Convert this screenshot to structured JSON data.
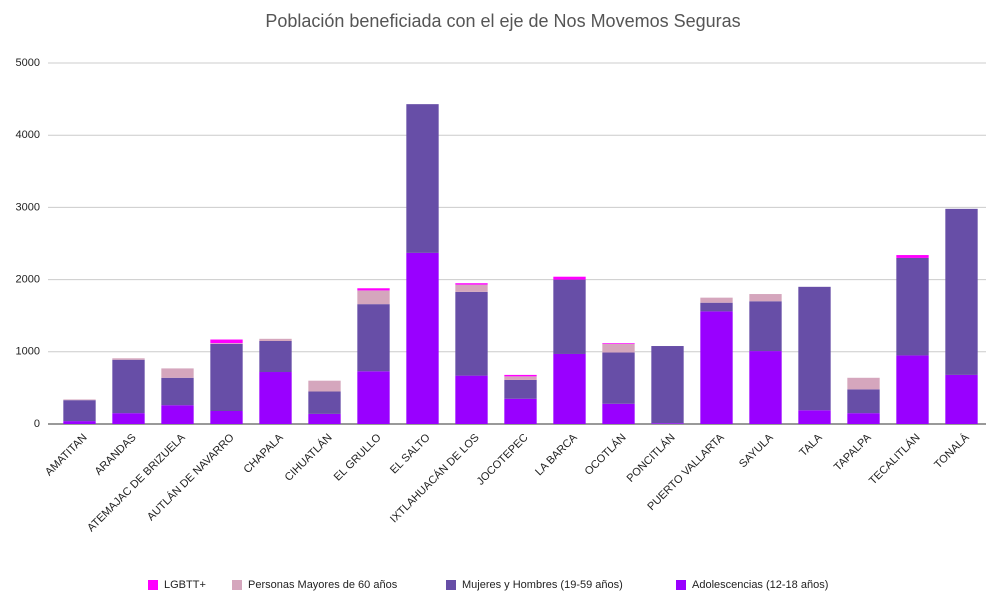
{
  "chart_data": {
    "type": "stacked_bar",
    "title": "Población beneficiada con el eje de Nos Movemos Seguras",
    "categories": [
      "AMATITAN",
      "ARANDAS",
      "ATEMAJAC DE BRIZUELA",
      "AUTLÁN DE NAVARRO",
      "CHAPALA",
      "CIHUATLÁN",
      "EL GRULLO",
      "EL SALTO",
      "IXTLAHUACÁN DE LOS",
      "JOCOTEPEC",
      "LA BARCA",
      "OCOTLÁN",
      "PONCITLÁN",
      "PUERTO VALLARTA",
      "SAYULA",
      "TALA",
      "TAPALPA",
      "TECALITLÁN",
      "TONALÁ"
    ],
    "series": [
      {
        "name": "LGBTT+",
        "color": "#ff00ff",
        "values": [
          0,
          0,
          0,
          50,
          0,
          0,
          30,
          0,
          20,
          20,
          40,
          10,
          0,
          0,
          0,
          0,
          0,
          40,
          0
        ]
      },
      {
        "name": "Personas Mayores de 60 años",
        "color": "#d5a6bd",
        "values": [
          10,
          20,
          130,
          10,
          30,
          150,
          190,
          0,
          100,
          50,
          0,
          120,
          0,
          70,
          100,
          0,
          160,
          0,
          0
        ]
      },
      {
        "name": "Mujeres y Hombres (19-59 años)",
        "color": "#674ea7",
        "values": [
          290,
          740,
          380,
          930,
          430,
          310,
          930,
          2060,
          1160,
          260,
          1030,
          710,
          1070,
          120,
          690,
          1710,
          330,
          1350,
          2300
        ]
      },
      {
        "name": "Adolescencias (12-18 años)",
        "color": "#9900ff",
        "values": [
          40,
          150,
          260,
          180,
          720,
          140,
          730,
          2370,
          670,
          350,
          970,
          280,
          10,
          1560,
          1010,
          190,
          150,
          950,
          680
        ]
      }
    ],
    "ylim": [
      0,
      5000
    ],
    "yticks": [
      0,
      1000,
      2000,
      3000,
      4000,
      5000
    ],
    "grid": true,
    "legend": "bottom"
  }
}
